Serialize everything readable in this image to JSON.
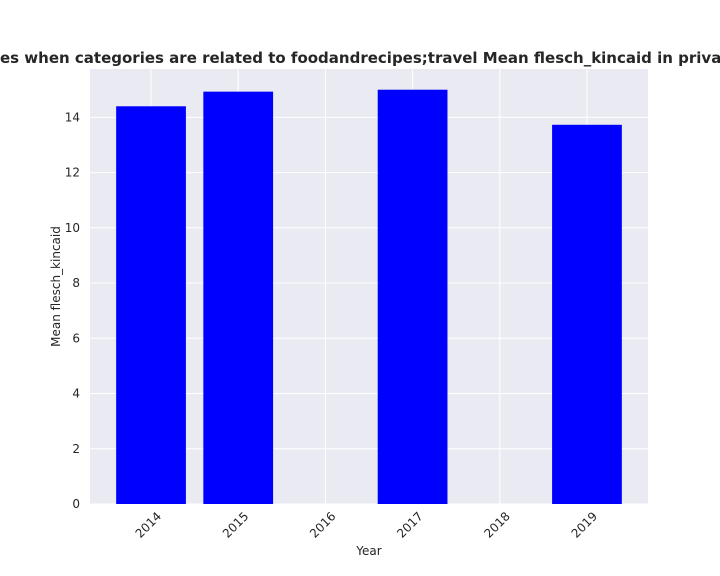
{
  "chart_data": {
    "type": "bar",
    "title": "Number of policies when categories are related to foodandrecipes;travel Mean flesch_kincaid in privacy policies by Year",
    "xlabel": "Year",
    "ylabel": "Mean flesch_kincaid",
    "categories": [
      "2014",
      "2015",
      "2016",
      "2017",
      "2018",
      "2019"
    ],
    "values": [
      14.4,
      14.93,
      null,
      15.0,
      null,
      13.73
    ],
    "ylim": [
      0,
      15.75
    ],
    "yticks": [
      0,
      2,
      4,
      6,
      8,
      10,
      12,
      14
    ],
    "bar_color": "#0000ff",
    "background_color": "#eaeaf2",
    "grid_color": "#ffffff",
    "grid": true
  }
}
